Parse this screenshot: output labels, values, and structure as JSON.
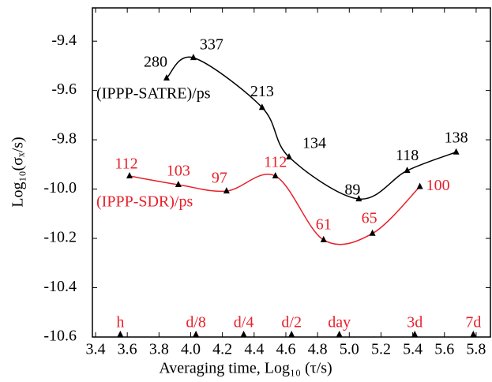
{
  "chart_data": {
    "type": "line",
    "x_label": "Averaging time, Log₁₀ (τ/s)",
    "y_label": "Log₁₀(σₓ/s)",
    "xlim": [
      3.38,
      5.89
    ],
    "ylim": [
      -10.6,
      -9.265
    ],
    "xticks": [
      3.4,
      3.6,
      3.8,
      {
        "value": 4,
        "label": "4.0"
      },
      4.2,
      4.4,
      4.6,
      4.8,
      {
        "value": 5,
        "label": "5.0"
      },
      5.2,
      5.4,
      5.6,
      5.8
    ],
    "yticks": [
      -9.4,
      -9.6,
      -9.8,
      {
        "value": -10,
        "label": "-10.0"
      },
      -10.2,
      -10.4,
      -10.6
    ],
    "marker_color": "#000000",
    "series": [
      {
        "name": "(IPPP-SATRE)/ps",
        "color": "#000000",
        "x": [
          3.848,
          4.017,
          4.45,
          4.62,
          5.06,
          5.365,
          5.674
        ],
        "values": [
          -9.55,
          -9.467,
          -9.669,
          -9.87,
          -10.04,
          -9.925,
          -9.85
        ],
        "point_labels": [
          280,
          337,
          213,
          134,
          89,
          118,
          138
        ]
      },
      {
        "name": "(IPPP-SDR)/ps",
        "color": "#e8202a",
        "x": [
          3.614,
          3.922,
          4.226,
          4.534,
          4.838,
          5.146,
          5.445
        ],
        "values": [
          -9.947,
          -9.982,
          -10.008,
          -9.947,
          -10.206,
          -10.18,
          -9.99
        ],
        "point_labels": [
          112,
          103,
          97,
          112,
          61,
          65,
          100
        ]
      }
    ],
    "time_markers": {
      "color": "#e8202a",
      "labels": [
        "h",
        "d/8",
        "d/4",
        "d/2",
        "day",
        "3d",
        "7d"
      ],
      "x": [
        3.556,
        4.033,
        4.334,
        4.636,
        4.937,
        5.413,
        5.782
      ]
    }
  }
}
